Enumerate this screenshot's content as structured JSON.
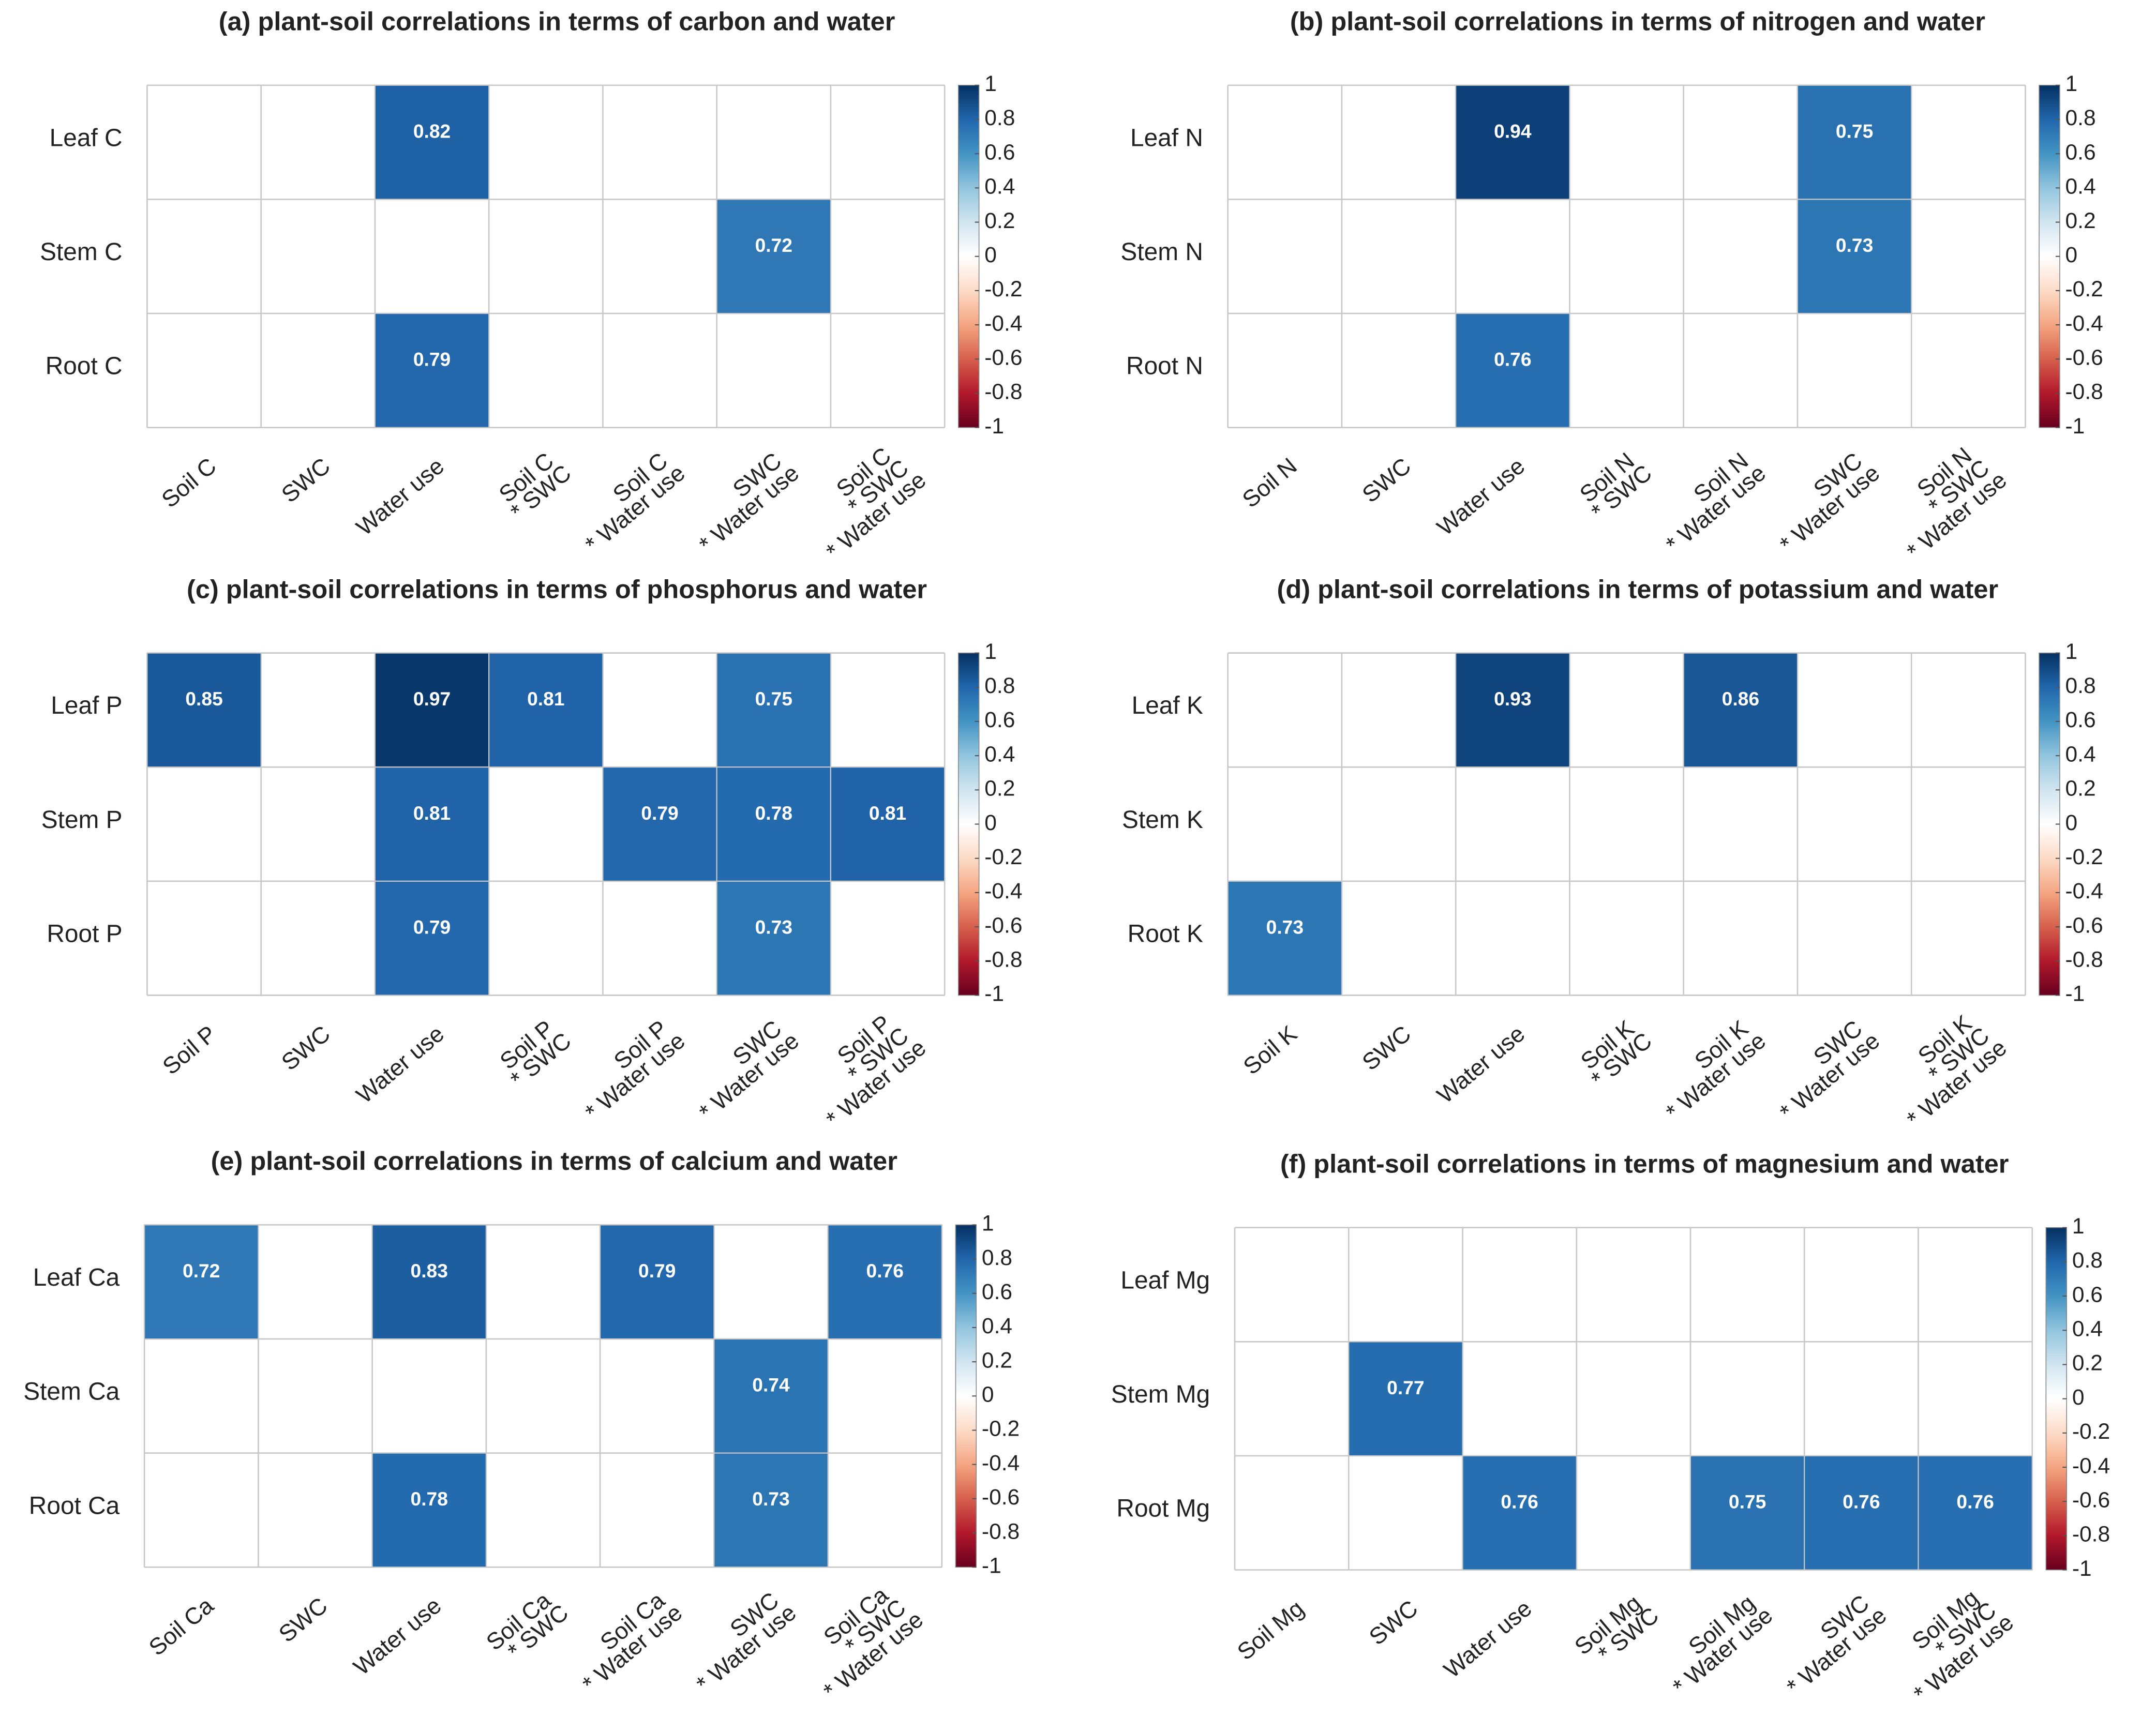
{
  "chart_data": [
    {
      "type": "heatmap",
      "title": "(a) plant-soil correlations in terms of carbon and water",
      "rows": [
        "Leaf C",
        "Stem C",
        "Root C"
      ],
      "categories": [
        [
          "Soil C"
        ],
        [
          "SWC"
        ],
        [
          "Water use"
        ],
        [
          "Soil C",
          "* SWC"
        ],
        [
          "Soil C",
          "* Water use"
        ],
        [
          "SWC",
          "* Water use"
        ],
        [
          "Soil C",
          "* SWC",
          "* Water use"
        ]
      ],
      "values": [
        [
          null,
          null,
          0.82,
          null,
          null,
          null,
          null
        ],
        [
          null,
          null,
          null,
          null,
          null,
          0.72,
          null
        ],
        [
          null,
          null,
          0.79,
          null,
          null,
          null,
          null
        ]
      ],
      "zlim": [
        -1,
        1
      ],
      "zticks": [
        1,
        0.8,
        0.6,
        0.4,
        0.2,
        0,
        -0.2,
        -0.4,
        -0.6,
        -0.8,
        -1
      ],
      "colorscale": [
        "#67001f",
        "#b2182b",
        "#d6604d",
        "#f4a582",
        "#fddbc7",
        "#ffffff",
        "#d1e5f0",
        "#92c5de",
        "#4393c3",
        "#2166ac",
        "#053061"
      ]
    },
    {
      "type": "heatmap",
      "title": "(b) plant-soil correlations in terms of nitrogen and water",
      "rows": [
        "Leaf N",
        "Stem N",
        "Root N"
      ],
      "categories": [
        [
          "Soil N"
        ],
        [
          "SWC"
        ],
        [
          "Water use"
        ],
        [
          "Soil N",
          "* SWC"
        ],
        [
          "Soil N",
          "* Water use"
        ],
        [
          "SWC",
          "* Water use"
        ],
        [
          "Soil N",
          "* SWC",
          "* Water use"
        ]
      ],
      "values": [
        [
          null,
          null,
          0.94,
          null,
          null,
          0.75,
          null
        ],
        [
          null,
          null,
          null,
          null,
          null,
          0.73,
          null
        ],
        [
          null,
          null,
          0.76,
          null,
          null,
          null,
          null
        ]
      ],
      "zlim": [
        -1,
        1
      ],
      "zticks": [
        1,
        0.8,
        0.6,
        0.4,
        0.2,
        0,
        -0.2,
        -0.4,
        -0.6,
        -0.8,
        -1
      ],
      "colorscale": [
        "#67001f",
        "#b2182b",
        "#d6604d",
        "#f4a582",
        "#fddbc7",
        "#ffffff",
        "#d1e5f0",
        "#92c5de",
        "#4393c3",
        "#2166ac",
        "#053061"
      ]
    },
    {
      "type": "heatmap",
      "title": "(c) plant-soil correlations in terms of phosphorus and water",
      "rows": [
        "Leaf P",
        "Stem P",
        "Root P"
      ],
      "categories": [
        [
          "Soil P"
        ],
        [
          "SWC"
        ],
        [
          "Water use"
        ],
        [
          "Soil P",
          "* SWC"
        ],
        [
          "Soil P",
          "* Water use"
        ],
        [
          "SWC",
          "* Water use"
        ],
        [
          "Soil P",
          "* SWC",
          "* Water use"
        ]
      ],
      "values": [
        [
          0.85,
          null,
          0.97,
          0.81,
          null,
          0.75,
          null
        ],
        [
          null,
          null,
          0.81,
          null,
          0.79,
          0.78,
          0.81
        ],
        [
          null,
          null,
          0.79,
          null,
          null,
          0.73,
          null
        ]
      ],
      "zlim": [
        -1,
        1
      ],
      "zticks": [
        1,
        0.8,
        0.6,
        0.4,
        0.2,
        0,
        -0.2,
        -0.4,
        -0.6,
        -0.8,
        -1
      ],
      "colorscale": [
        "#67001f",
        "#b2182b",
        "#d6604d",
        "#f4a582",
        "#fddbc7",
        "#ffffff",
        "#d1e5f0",
        "#92c5de",
        "#4393c3",
        "#2166ac",
        "#053061"
      ]
    },
    {
      "type": "heatmap",
      "title": "(d) plant-soil correlations in terms of potassium and water",
      "rows": [
        "Leaf K",
        "Stem K",
        "Root K"
      ],
      "categories": [
        [
          "Soil K"
        ],
        [
          "SWC"
        ],
        [
          "Water use"
        ],
        [
          "Soil K",
          "* SWC"
        ],
        [
          "Soil K",
          "* Water use"
        ],
        [
          "SWC",
          "* Water use"
        ],
        [
          "Soil K",
          "* SWC",
          "* Water use"
        ]
      ],
      "values": [
        [
          null,
          null,
          0.93,
          null,
          0.86,
          null,
          null
        ],
        [
          null,
          null,
          null,
          null,
          null,
          null,
          null
        ],
        [
          0.73,
          null,
          null,
          null,
          null,
          null,
          null
        ]
      ],
      "zlim": [
        -1,
        1
      ],
      "zticks": [
        1,
        0.8,
        0.6,
        0.4,
        0.2,
        0,
        -0.2,
        -0.4,
        -0.6,
        -0.8,
        -1
      ],
      "colorscale": [
        "#67001f",
        "#b2182b",
        "#d6604d",
        "#f4a582",
        "#fddbc7",
        "#ffffff",
        "#d1e5f0",
        "#92c5de",
        "#4393c3",
        "#2166ac",
        "#053061"
      ]
    },
    {
      "type": "heatmap",
      "title": "(e) plant-soil correlations in terms of calcium and water",
      "rows": [
        "Leaf Ca",
        "Stem Ca",
        "Root Ca"
      ],
      "categories": [
        [
          "Soil Ca"
        ],
        [
          "SWC"
        ],
        [
          "Water use"
        ],
        [
          "Soil Ca",
          "* SWC"
        ],
        [
          "Soil Ca",
          "* Water use"
        ],
        [
          "SWC",
          "* Water use"
        ],
        [
          "Soil Ca",
          "* SWC",
          "* Water use"
        ]
      ],
      "values": [
        [
          0.72,
          null,
          0.83,
          null,
          0.79,
          null,
          0.76
        ],
        [
          null,
          null,
          null,
          null,
          null,
          0.74,
          null
        ],
        [
          null,
          null,
          0.78,
          null,
          null,
          0.73,
          null
        ]
      ],
      "zlim": [
        -1,
        1
      ],
      "zticks": [
        1,
        0.8,
        0.6,
        0.4,
        0.2,
        0,
        -0.2,
        -0.4,
        -0.6,
        -0.8,
        -1
      ],
      "colorscale": [
        "#67001f",
        "#b2182b",
        "#d6604d",
        "#f4a582",
        "#fddbc7",
        "#ffffff",
        "#d1e5f0",
        "#92c5de",
        "#4393c3",
        "#2166ac",
        "#053061"
      ]
    },
    {
      "type": "heatmap",
      "title": "(f) plant-soil correlations in terms of magnesium and water",
      "rows": [
        "Leaf Mg",
        "Stem Mg",
        "Root Mg"
      ],
      "categories": [
        [
          "Soil Mg"
        ],
        [
          "SWC"
        ],
        [
          "Water use"
        ],
        [
          "Soil Mg",
          "* SWC"
        ],
        [
          "Soil Mg",
          "* Water use"
        ],
        [
          "SWC",
          "* Water use"
        ],
        [
          "Soil Mg",
          "* SWC",
          "* Water use"
        ]
      ],
      "values": [
        [
          null,
          null,
          null,
          null,
          null,
          null,
          null
        ],
        [
          null,
          0.77,
          null,
          null,
          null,
          null,
          null
        ],
        [
          null,
          null,
          0.76,
          null,
          0.75,
          0.76,
          0.76
        ]
      ],
      "zlim": [
        -1,
        1
      ],
      "zticks": [
        1,
        0.8,
        0.6,
        0.4,
        0.2,
        0,
        -0.2,
        -0.4,
        -0.6,
        -0.8,
        -1
      ],
      "colorscale": [
        "#67001f",
        "#b2182b",
        "#d6604d",
        "#f4a582",
        "#fddbc7",
        "#ffffff",
        "#d1e5f0",
        "#92c5de",
        "#4393c3",
        "#2166ac",
        "#053061"
      ]
    }
  ]
}
